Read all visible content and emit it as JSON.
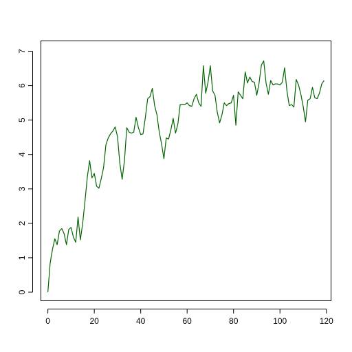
{
  "chart_data": {
    "type": "line",
    "title": "",
    "xlabel": "",
    "ylabel": "",
    "xlim": [
      -3,
      122
    ],
    "ylim": [
      -0.25,
      7.3
    ],
    "x_ticks": [
      0,
      20,
      40,
      60,
      80,
      100,
      120
    ],
    "y_ticks": [
      0,
      1,
      2,
      3,
      4,
      5,
      6,
      7
    ],
    "grid": false,
    "legend": "none",
    "series": [
      {
        "color": "#006400",
        "x": [
          0,
          1,
          2,
          3,
          4,
          5,
          6,
          7,
          8,
          9,
          10,
          11,
          12,
          13,
          14,
          15,
          16,
          17,
          18,
          19,
          20,
          21,
          22,
          23,
          24,
          25,
          26,
          27,
          28,
          29,
          30,
          31,
          32,
          33,
          34,
          35,
          36,
          37,
          38,
          39,
          40,
          41,
          42,
          43,
          44,
          45,
          46,
          47,
          48,
          49,
          50,
          51,
          52,
          53,
          54,
          55,
          56,
          57,
          58,
          59,
          60,
          61,
          62,
          63,
          64,
          65,
          66,
          67,
          68,
          69,
          70,
          71,
          72,
          73,
          74,
          75,
          76,
          77,
          78,
          79,
          80,
          81,
          82,
          83,
          84,
          85,
          86,
          87,
          88,
          89,
          90,
          91,
          92,
          93,
          94,
          95,
          96,
          97,
          98,
          99,
          100,
          101,
          102,
          103,
          104,
          105,
          106,
          107,
          108,
          109,
          110,
          111,
          112,
          113,
          114,
          115,
          116,
          117,
          118,
          119
        ],
        "values": [
          0.0,
          0.85,
          1.25,
          1.55,
          1.38,
          1.78,
          1.85,
          1.7,
          1.38,
          1.82,
          1.88,
          1.6,
          1.45,
          2.18,
          1.52,
          2.0,
          2.65,
          3.35,
          3.82,
          3.32,
          3.45,
          3.08,
          3.02,
          3.3,
          3.62,
          4.28,
          4.48,
          4.6,
          4.68,
          4.8,
          4.52,
          3.75,
          3.28,
          3.82,
          4.78,
          4.65,
          4.62,
          4.65,
          5.08,
          4.78,
          4.58,
          4.6,
          5.08,
          5.62,
          5.68,
          5.92,
          5.42,
          5.15,
          4.65,
          4.3,
          3.88,
          4.48,
          4.45,
          4.72,
          5.05,
          4.62,
          4.88,
          5.45,
          5.45,
          5.45,
          5.5,
          5.42,
          5.4,
          5.62,
          5.75,
          5.5,
          5.4,
          6.58,
          5.78,
          6.1,
          6.58,
          5.85,
          5.72,
          5.22,
          4.92,
          5.15,
          5.5,
          5.42,
          5.48,
          5.5,
          5.72,
          4.85,
          5.82,
          5.72,
          5.62,
          6.4,
          6.08,
          6.25,
          6.12,
          6.1,
          5.72,
          6.08,
          6.6,
          6.72,
          6.08,
          5.75,
          6.15,
          6.02,
          6.05,
          6.05,
          6.02,
          6.1,
          6.52,
          5.85,
          5.42,
          5.45,
          5.38,
          6.18,
          6.02,
          5.75,
          5.4,
          4.95,
          5.58,
          5.62,
          5.95,
          5.65,
          5.62,
          5.78,
          6.05,
          6.15
        ]
      }
    ]
  }
}
